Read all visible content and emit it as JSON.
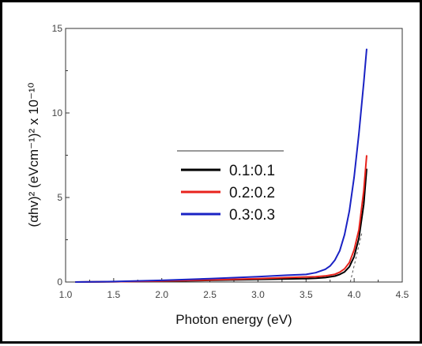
{
  "chart_data": {
    "type": "line",
    "title": "",
    "xlabel": "Photon energy (eV)",
    "ylabel": "(αhv)² (eVcm⁻¹)² x 10⁻¹⁰",
    "xlim": [
      1.0,
      4.5
    ],
    "ylim": [
      0,
      15
    ],
    "xticks": [
      "1.0",
      "1.5",
      "2.0",
      "2.5",
      "3.0",
      "3.5",
      "4.0",
      "4.5"
    ],
    "yticks": [
      "0",
      "5",
      "10",
      "15"
    ],
    "grid": false,
    "legend_placement": "center",
    "series": [
      {
        "name": "0.1:0.1",
        "color": "#000000",
        "x": [
          1.1,
          1.5,
          2.0,
          2.5,
          3.0,
          3.3,
          3.5,
          3.6,
          3.7,
          3.8,
          3.85,
          3.9,
          3.95,
          4.0,
          4.05,
          4.1,
          4.13
        ],
        "y": [
          0.0,
          0.02,
          0.05,
          0.1,
          0.15,
          0.18,
          0.2,
          0.22,
          0.26,
          0.35,
          0.45,
          0.6,
          0.9,
          1.5,
          2.6,
          4.6,
          6.7
        ]
      },
      {
        "name": "0.2:0.2",
        "color": "#e8231c",
        "x": [
          1.1,
          1.5,
          2.0,
          2.5,
          3.0,
          3.3,
          3.5,
          3.6,
          3.7,
          3.8,
          3.85,
          3.9,
          3.95,
          4.0,
          4.05,
          4.1,
          4.13
        ],
        "y": [
          0.0,
          0.02,
          0.06,
          0.12,
          0.2,
          0.26,
          0.3,
          0.32,
          0.36,
          0.46,
          0.58,
          0.78,
          1.15,
          1.9,
          3.1,
          5.4,
          7.5
        ]
      },
      {
        "name": "0.3:0.3",
        "color": "#1a22c4",
        "x": [
          1.1,
          1.5,
          2.0,
          2.5,
          3.0,
          3.3,
          3.5,
          3.6,
          3.7,
          3.75,
          3.8,
          3.85,
          3.9,
          3.95,
          4.0,
          4.05,
          4.1,
          4.13
        ],
        "y": [
          0.0,
          0.03,
          0.1,
          0.2,
          0.32,
          0.4,
          0.45,
          0.55,
          0.75,
          0.95,
          1.3,
          1.85,
          2.8,
          4.2,
          6.2,
          8.8,
          11.8,
          13.8
        ]
      }
    ],
    "annotations": [
      {
        "type": "dashed-tangent",
        "color": "#555555",
        "x": [
          3.96,
          4.08
        ],
        "y": [
          0.0,
          2.9
        ]
      }
    ]
  }
}
